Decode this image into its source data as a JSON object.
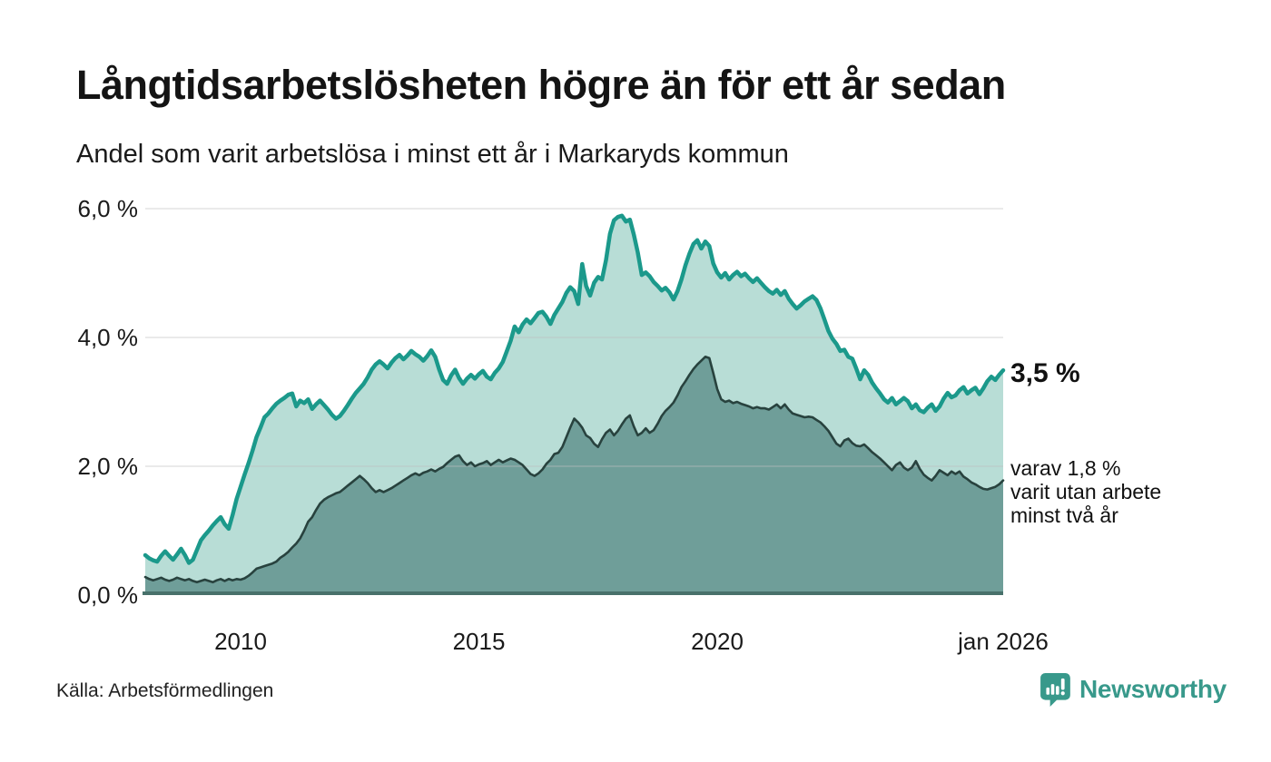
{
  "header": {
    "title": "Långtidsarbetslösheten högre än för ett år sedan",
    "subtitle": "Andel som varit arbetslösa i minst ett år i Markaryds kommun"
  },
  "annotations": {
    "latest_total": "3,5 %",
    "secondary_line1": "varav 1,8 %",
    "secondary_line2": "varit utan arbete",
    "secondary_line3": "minst två år"
  },
  "footer": {
    "source": "Källa: Arbetsförmedlingen",
    "logo_text": "Newsworthy"
  },
  "colors": {
    "line_total": "#1b998b",
    "fill_total": "#b8ddd6",
    "line_two_years": "#28423e",
    "fill_two_years": "#6f9e99",
    "gridline": "#bfbfbf",
    "axis": "#48716b",
    "logo_teal": "#38998b",
    "text": "#141414"
  },
  "chart_data": {
    "type": "area",
    "title": "Andel som varit arbetslösa i minst ett år i Markaryds kommun",
    "x_start": "2008-01",
    "x_end": "2026-01",
    "interval": "monthly",
    "x_tick_labels": [
      "2010",
      "2015",
      "2020",
      "jan 2026"
    ],
    "x_tick_years": [
      2010,
      2015,
      2020,
      2026
    ],
    "y_tick_labels": [
      "0,0 %",
      "2,0 %",
      "4,0 %",
      "6,0 %"
    ],
    "y_tick_values": [
      0,
      2,
      4,
      6
    ],
    "ylim": [
      0,
      6
    ],
    "grid": "horizontal",
    "legend_position": "right-annotations",
    "series": [
      {
        "name": "Arbetslösa minst ett år",
        "last_value_label": "3,5 %",
        "last_value": 3.5,
        "values": [
          0.62,
          0.57,
          0.54,
          0.52,
          0.61,
          0.68,
          0.61,
          0.55,
          0.63,
          0.72,
          0.62,
          0.5,
          0.55,
          0.7,
          0.85,
          0.93,
          1.0,
          1.08,
          1.15,
          1.21,
          1.1,
          1.03,
          1.25,
          1.49,
          1.68,
          1.87,
          2.05,
          2.24,
          2.45,
          2.6,
          2.76,
          2.82,
          2.9,
          2.97,
          3.02,
          3.06,
          3.11,
          3.13,
          2.93,
          3.02,
          2.98,
          3.04,
          2.89,
          2.96,
          3.02,
          2.95,
          2.88,
          2.8,
          2.74,
          2.78,
          2.86,
          2.95,
          3.05,
          3.14,
          3.21,
          3.28,
          3.38,
          3.5,
          3.58,
          3.63,
          3.58,
          3.52,
          3.61,
          3.68,
          3.73,
          3.66,
          3.72,
          3.79,
          3.74,
          3.7,
          3.64,
          3.71,
          3.8,
          3.7,
          3.5,
          3.34,
          3.28,
          3.41,
          3.5,
          3.37,
          3.28,
          3.36,
          3.42,
          3.36,
          3.43,
          3.48,
          3.39,
          3.35,
          3.45,
          3.52,
          3.62,
          3.78,
          3.95,
          4.17,
          4.08,
          4.2,
          4.28,
          4.22,
          4.3,
          4.38,
          4.4,
          4.32,
          4.21,
          4.35,
          4.45,
          4.55,
          4.69,
          4.78,
          4.72,
          4.52,
          5.14,
          4.8,
          4.65,
          4.85,
          4.94,
          4.9,
          5.2,
          5.61,
          5.82,
          5.87,
          5.89,
          5.8,
          5.83,
          5.6,
          5.32,
          4.97,
          5.01,
          4.95,
          4.86,
          4.8,
          4.73,
          4.77,
          4.7,
          4.59,
          4.72,
          4.9,
          5.12,
          5.3,
          5.45,
          5.51,
          5.38,
          5.49,
          5.42,
          5.15,
          5.01,
          4.93,
          5.0,
          4.9,
          4.97,
          5.02,
          4.95,
          4.99,
          4.92,
          4.86,
          4.92,
          4.85,
          4.78,
          4.72,
          4.68,
          4.74,
          4.66,
          4.72,
          4.6,
          4.52,
          4.45,
          4.5,
          4.56,
          4.6,
          4.64,
          4.58,
          4.45,
          4.28,
          4.1,
          3.98,
          3.9,
          3.79,
          3.81,
          3.7,
          3.67,
          3.52,
          3.35,
          3.49,
          3.42,
          3.3,
          3.21,
          3.13,
          3.04,
          2.99,
          3.06,
          2.96,
          3.01,
          3.06,
          3.01,
          2.9,
          2.96,
          2.87,
          2.84,
          2.91,
          2.96,
          2.86,
          2.93,
          3.05,
          3.14,
          3.07,
          3.1,
          3.18,
          3.23,
          3.13,
          3.18,
          3.22,
          3.12,
          3.21,
          3.32,
          3.39,
          3.34,
          3.42,
          3.49
        ]
      },
      {
        "name": "varav utan arbete minst två år",
        "last_value_label": "1,8 %",
        "last_value": 1.8,
        "values": [
          0.28,
          0.25,
          0.23,
          0.25,
          0.27,
          0.24,
          0.22,
          0.24,
          0.27,
          0.25,
          0.23,
          0.25,
          0.22,
          0.2,
          0.22,
          0.24,
          0.22,
          0.2,
          0.23,
          0.25,
          0.22,
          0.25,
          0.23,
          0.25,
          0.24,
          0.26,
          0.3,
          0.35,
          0.41,
          0.43,
          0.45,
          0.47,
          0.49,
          0.52,
          0.58,
          0.62,
          0.67,
          0.74,
          0.8,
          0.88,
          1.0,
          1.14,
          1.21,
          1.32,
          1.42,
          1.48,
          1.52,
          1.55,
          1.58,
          1.6,
          1.65,
          1.7,
          1.75,
          1.8,
          1.85,
          1.8,
          1.74,
          1.66,
          1.6,
          1.63,
          1.6,
          1.63,
          1.66,
          1.7,
          1.74,
          1.78,
          1.82,
          1.86,
          1.89,
          1.86,
          1.9,
          1.92,
          1.95,
          1.92,
          1.96,
          1.99,
          2.05,
          2.1,
          2.15,
          2.17,
          2.08,
          2.02,
          2.06,
          2.0,
          2.03,
          2.05,
          2.08,
          2.02,
          2.06,
          2.1,
          2.06,
          2.09,
          2.12,
          2.1,
          2.06,
          2.02,
          1.95,
          1.88,
          1.85,
          1.89,
          1.95,
          2.04,
          2.1,
          2.19,
          2.21,
          2.3,
          2.45,
          2.6,
          2.74,
          2.68,
          2.6,
          2.48,
          2.44,
          2.35,
          2.3,
          2.42,
          2.52,
          2.57,
          2.48,
          2.55,
          2.65,
          2.74,
          2.79,
          2.62,
          2.48,
          2.52,
          2.59,
          2.52,
          2.56,
          2.66,
          2.78,
          2.86,
          2.92,
          2.99,
          3.1,
          3.23,
          3.32,
          3.42,
          3.51,
          3.58,
          3.64,
          3.7,
          3.68,
          3.45,
          3.2,
          3.04,
          3.0,
          3.02,
          2.98,
          3.0,
          2.97,
          2.95,
          2.93,
          2.9,
          2.92,
          2.9,
          2.9,
          2.88,
          2.92,
          2.96,
          2.9,
          2.96,
          2.88,
          2.82,
          2.8,
          2.78,
          2.76,
          2.77,
          2.76,
          2.72,
          2.68,
          2.62,
          2.55,
          2.45,
          2.35,
          2.31,
          2.4,
          2.43,
          2.36,
          2.32,
          2.31,
          2.34,
          2.28,
          2.22,
          2.17,
          2.12,
          2.06,
          2.0,
          1.94,
          2.02,
          2.06,
          1.98,
          1.94,
          1.98,
          2.08,
          1.96,
          1.87,
          1.82,
          1.78,
          1.85,
          1.94,
          1.9,
          1.86,
          1.92,
          1.88,
          1.92,
          1.84,
          1.8,
          1.75,
          1.72,
          1.68,
          1.65,
          1.64,
          1.66,
          1.68,
          1.72,
          1.78
        ]
      }
    ]
  }
}
